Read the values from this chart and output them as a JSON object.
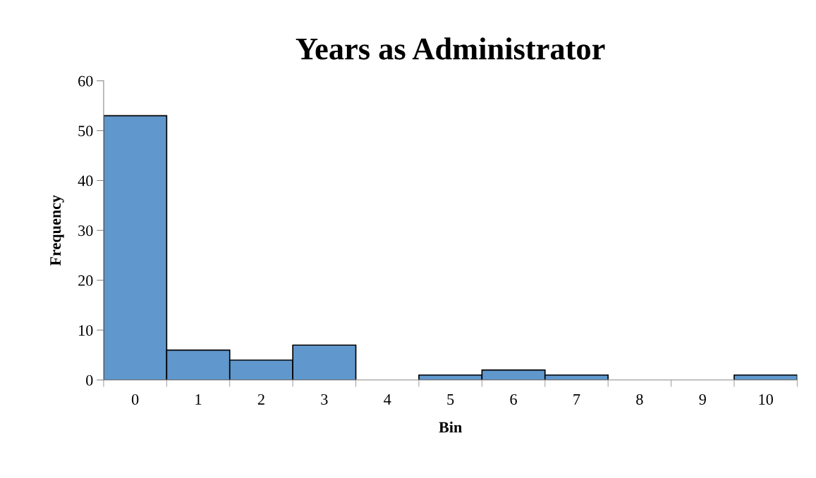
{
  "chart_data": {
    "type": "bar",
    "title": "Years as Administrator",
    "xlabel": "Bin",
    "ylabel": "Frequency",
    "categories": [
      "0",
      "1",
      "2",
      "3",
      "4",
      "5",
      "6",
      "7",
      "8",
      "9",
      "10"
    ],
    "values": [
      53,
      6,
      4,
      7,
      0,
      1,
      2,
      1,
      0,
      0,
      1
    ],
    "color": "#6097cc",
    "ylim": [
      0,
      60
    ],
    "yticks": [
      0,
      10,
      20,
      30,
      40,
      50,
      60
    ]
  }
}
